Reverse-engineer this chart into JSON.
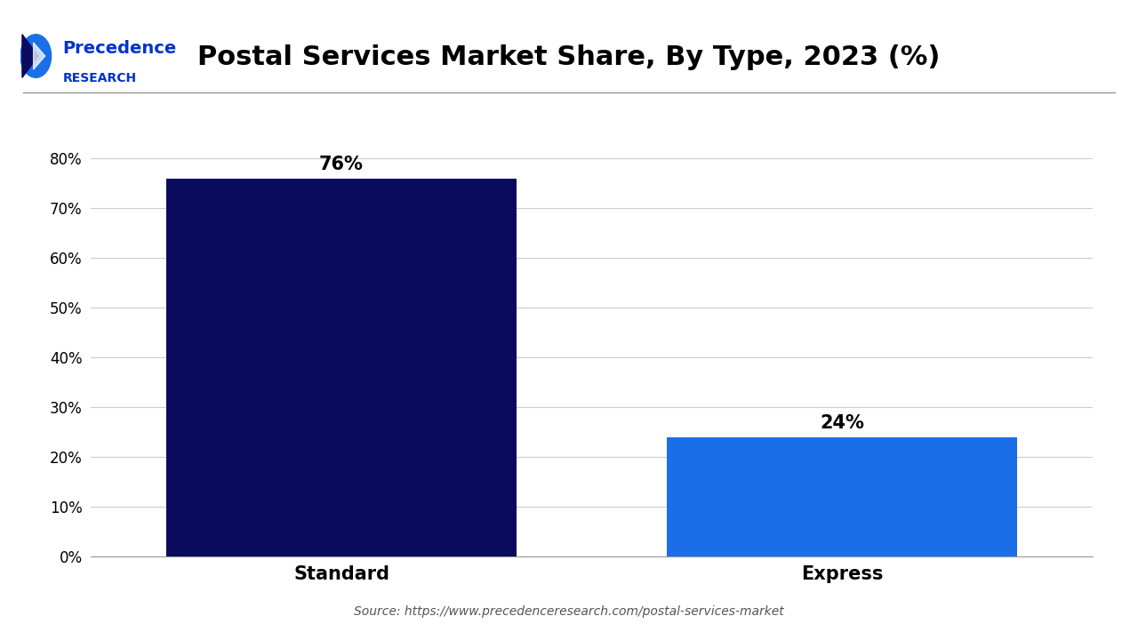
{
  "title": "Postal Services Market Share, By Type, 2023 (%)",
  "categories": [
    "Standard",
    "Express"
  ],
  "values": [
    76,
    24
  ],
  "bar_colors": [
    "#0a0a5e",
    "#1a6fe8"
  ],
  "value_labels": [
    "76%",
    "24%"
  ],
  "ylim": [
    0,
    90
  ],
  "yticks": [
    0,
    10,
    20,
    30,
    40,
    50,
    60,
    70,
    80
  ],
  "ytick_labels": [
    "0%",
    "10%",
    "20%",
    "30%",
    "40%",
    "50%",
    "60%",
    "70%",
    "80%"
  ],
  "source_text": "Source: https://www.precedenceresearch.com/postal-services-market",
  "background_color": "#ffffff",
  "title_fontsize": 22,
  "label_fontsize": 14,
  "tick_fontsize": 12,
  "bar_width": 0.35,
  "logo_text_line1": "Precedence",
  "logo_text_line2": "RESEARCH",
  "logo_color": "#0033cc"
}
